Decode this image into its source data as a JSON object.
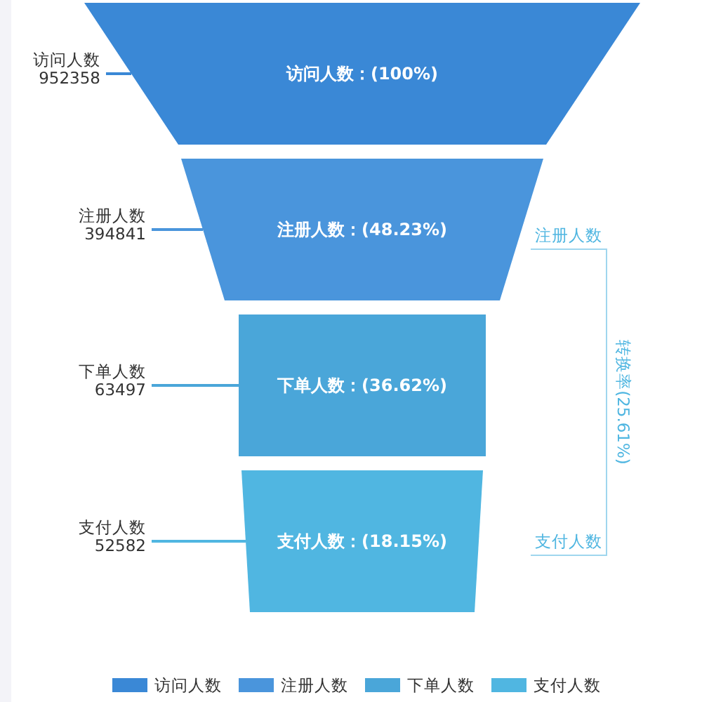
{
  "chart_data": {
    "type": "other",
    "categories": [
      "访问人数",
      "注册人数",
      "下单人数",
      "支付人数"
    ],
    "values": [
      952358,
      394841,
      63497,
      52582
    ],
    "colors": [
      "#3a88d6",
      "#4a95dc",
      "#4aa6d9",
      "#50b6e1"
    ],
    "data_labels": true,
    "annotations": [
      {
        "text": "访问人数：(100%)",
        "x": "访问人数"
      },
      {
        "text": "注册人数：(48.23%)",
        "x": "注册人数"
      },
      {
        "text": "下单人数：(36.62%)",
        "x": "下单人数"
      },
      {
        "text": "支付人数：(18.15%)",
        "x": "支付人数"
      },
      "注册人数",
      "支付人数",
      "转换率(25.61%)"
    ]
  }
}
